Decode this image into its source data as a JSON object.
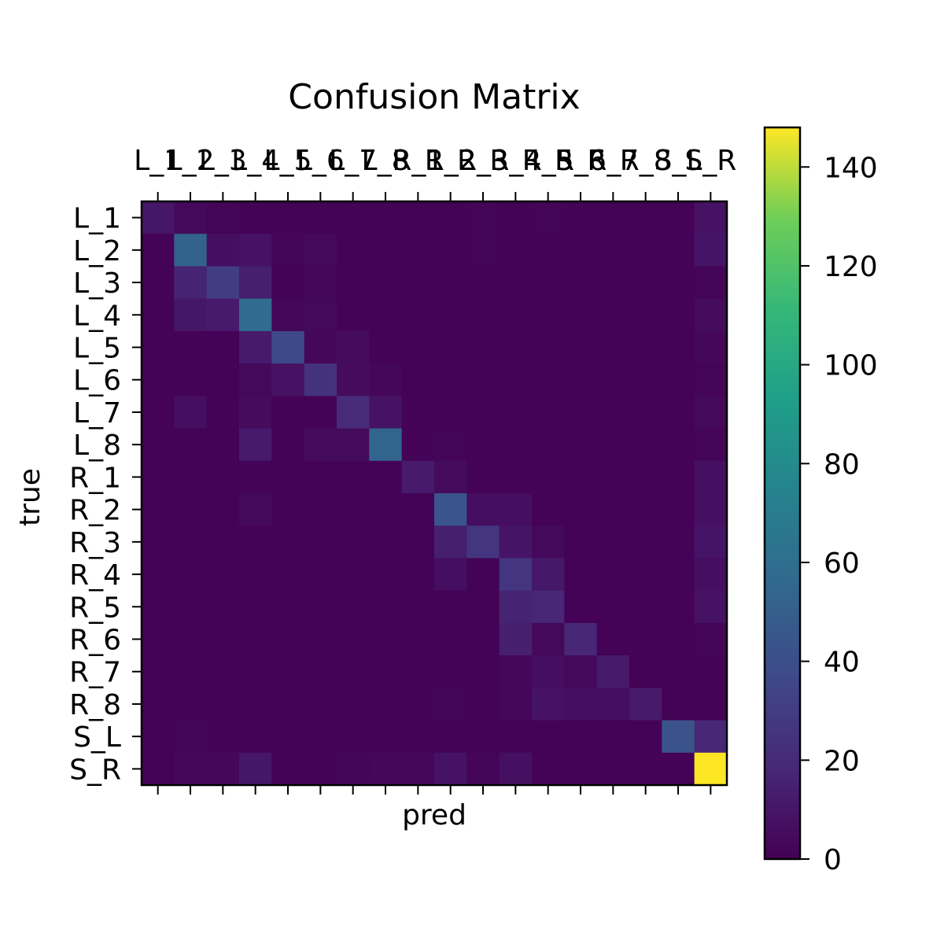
{
  "chart_data": {
    "type": "heatmap",
    "title": "Confusion Matrix",
    "xlabel": "pred",
    "ylabel": "true",
    "x_labels": [
      "L_1",
      "L_2",
      "L_3",
      "L_4",
      "L_5",
      "L_6",
      "L_7",
      "L_8",
      "R_1",
      "R_2",
      "R_3",
      "R_4",
      "R_5",
      "R_6",
      "R_7",
      "R_8",
      "S_L",
      "S_R"
    ],
    "y_labels": [
      "L_1",
      "L_2",
      "L_3",
      "L_4",
      "L_5",
      "L_6",
      "L_7",
      "L_8",
      "R_1",
      "R_2",
      "R_3",
      "R_4",
      "R_5",
      "R_6",
      "R_7",
      "R_8",
      "S_L",
      "S_R"
    ],
    "matrix": [
      [
        10,
        4,
        2,
        1,
        1,
        1,
        1,
        1,
        1,
        1,
        2,
        1,
        2,
        1,
        1,
        1,
        1,
        8
      ],
      [
        1,
        52,
        6,
        8,
        2,
        4,
        1,
        1,
        1,
        1,
        2,
        1,
        1,
        1,
        1,
        1,
        1,
        9
      ],
      [
        1,
        16,
        30,
        14,
        1,
        3,
        1,
        1,
        1,
        1,
        1,
        1,
        1,
        1,
        1,
        1,
        1,
        2
      ],
      [
        1,
        10,
        12,
        58,
        3,
        4,
        1,
        1,
        1,
        1,
        1,
        1,
        1,
        1,
        1,
        1,
        1,
        5
      ],
      [
        1,
        1,
        1,
        12,
        37,
        3,
        5,
        1,
        1,
        1,
        1,
        1,
        1,
        1,
        1,
        1,
        1,
        3
      ],
      [
        1,
        1,
        1,
        4,
        8,
        24,
        5,
        3,
        1,
        1,
        1,
        1,
        1,
        1,
        1,
        1,
        1,
        2
      ],
      [
        1,
        6,
        1,
        5,
        1,
        1,
        20,
        8,
        1,
        1,
        1,
        1,
        1,
        1,
        1,
        1,
        1,
        4
      ],
      [
        1,
        1,
        1,
        12,
        1,
        5,
        5,
        54,
        1,
        2,
        1,
        1,
        1,
        1,
        1,
        1,
        1,
        2
      ],
      [
        1,
        1,
        1,
        1,
        1,
        1,
        1,
        1,
        12,
        5,
        1,
        1,
        1,
        1,
        1,
        1,
        1,
        7
      ],
      [
        1,
        1,
        1,
        4,
        1,
        1,
        1,
        1,
        1,
        44,
        6,
        6,
        1,
        1,
        1,
        1,
        1,
        7
      ],
      [
        1,
        1,
        1,
        1,
        1,
        1,
        1,
        1,
        1,
        14,
        26,
        9,
        4,
        1,
        1,
        1,
        1,
        9
      ],
      [
        1,
        1,
        1,
        1,
        1,
        1,
        1,
        1,
        1,
        6,
        1,
        26,
        11,
        1,
        1,
        1,
        1,
        6
      ],
      [
        1,
        1,
        1,
        1,
        1,
        1,
        1,
        1,
        1,
        1,
        1,
        16,
        18,
        1,
        1,
        1,
        1,
        8
      ],
      [
        1,
        1,
        1,
        1,
        1,
        1,
        1,
        1,
        1,
        1,
        1,
        14,
        4,
        18,
        1,
        1,
        1,
        2
      ],
      [
        1,
        1,
        1,
        1,
        1,
        1,
        1,
        1,
        1,
        1,
        1,
        3,
        6,
        4,
        12,
        1,
        1,
        1
      ],
      [
        1,
        1,
        1,
        1,
        1,
        1,
        1,
        1,
        1,
        2,
        1,
        3,
        8,
        6,
        6,
        12,
        1,
        1
      ],
      [
        1,
        2,
        1,
        1,
        1,
        1,
        1,
        1,
        1,
        1,
        1,
        1,
        1,
        1,
        1,
        1,
        43,
        18
      ],
      [
        1,
        3,
        3,
        10,
        1,
        1,
        2,
        3,
        3,
        8,
        2,
        7,
        1,
        1,
        1,
        1,
        1,
        148
      ]
    ],
    "colorbar": {
      "colormap": "viridis",
      "range": [
        0,
        148
      ],
      "ticks": [
        0,
        20,
        40,
        60,
        80,
        100,
        120,
        140
      ]
    },
    "x_tick_position": "top",
    "grid": false
  }
}
